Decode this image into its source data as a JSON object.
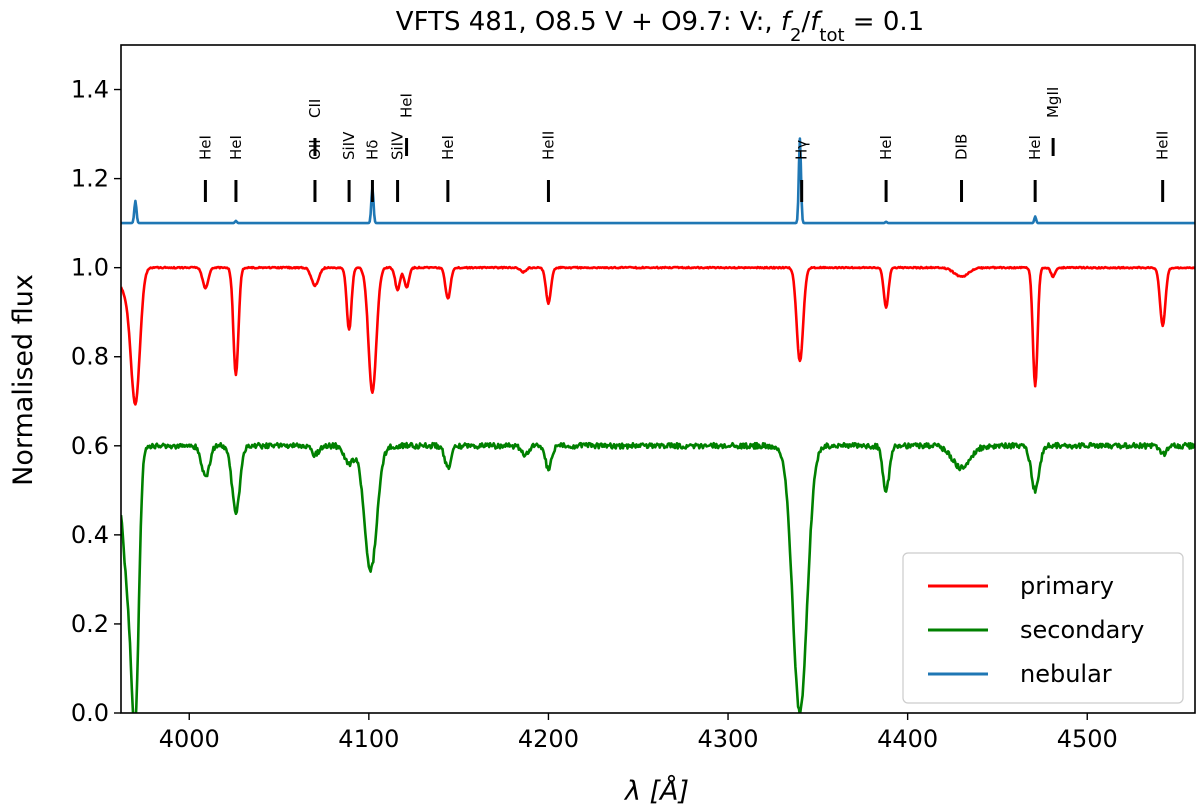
{
  "chart_data": {
    "type": "line",
    "title": {
      "prefix": "VFTS 481, O8.5 V + O9.7: V:, ",
      "f2": "f",
      "f2_sub": "2",
      "slash": "/",
      "ftot": "f",
      "ftot_sub": "tot",
      "suffix": " = 0.1"
    },
    "xlabel": {
      "lambda": "λ",
      "unit": "[Å]"
    },
    "ylabel": "Normalised flux",
    "xlim": [
      3962,
      4560
    ],
    "ylim": [
      0.0,
      1.5
    ],
    "xticks": [
      4000,
      4100,
      4200,
      4300,
      4400,
      4500
    ],
    "xtick_labels": [
      "4000",
      "4100",
      "4200",
      "4300",
      "4400",
      "4500"
    ],
    "yticks": [
      0.0,
      0.2,
      0.4,
      0.6,
      0.8,
      1.0,
      1.2,
      1.4
    ],
    "ytick_labels": [
      "0.0",
      "0.2",
      "0.4",
      "0.6",
      "0.8",
      "1.0",
      "1.2",
      "1.4"
    ],
    "grid": false,
    "legend_position": "lower-right",
    "line_markers": [
      {
        "label": "HeI",
        "x": 4009,
        "level": "low"
      },
      {
        "label": "HeI",
        "x": 4026,
        "level": "low"
      },
      {
        "label": "OII",
        "x": 4070,
        "level": "low"
      },
      {
        "label": "CII",
        "x": 4070,
        "level": "high"
      },
      {
        "label": "SiIV",
        "x": 4089,
        "level": "low"
      },
      {
        "label": "Hδ",
        "x": 4102,
        "level": "low"
      },
      {
        "label": "SiIV",
        "x": 4116,
        "level": "low"
      },
      {
        "label": "HeI",
        "x": 4121,
        "level": "high"
      },
      {
        "label": "HeI",
        "x": 4144,
        "level": "low"
      },
      {
        "label": "HeII",
        "x": 4200,
        "level": "low"
      },
      {
        "label": "Hγ",
        "x": 4341,
        "level": "low"
      },
      {
        "label": "HeI",
        "x": 4388,
        "level": "low"
      },
      {
        "label": "DIB",
        "x": 4430,
        "level": "low"
      },
      {
        "label": "HeI",
        "x": 4471,
        "level": "low"
      },
      {
        "label": "MgII",
        "x": 4481,
        "level": "high"
      },
      {
        "label": "HeII",
        "x": 4542,
        "level": "low"
      }
    ],
    "series": [
      {
        "name": "primary",
        "color": "#ff0000",
        "continuum": 1.0,
        "absorption_lines": [
          {
            "center": 3964,
            "depth": 0.05,
            "width": 3
          },
          {
            "center": 3970,
            "depth": 0.3,
            "width": 2.5
          },
          {
            "center": 4009,
            "depth": 0.045,
            "width": 1.6
          },
          {
            "center": 4026,
            "depth": 0.24,
            "width": 1.4
          },
          {
            "center": 4070,
            "depth": 0.04,
            "width": 2.0
          },
          {
            "center": 4089,
            "depth": 0.14,
            "width": 1.3
          },
          {
            "center": 4102,
            "depth": 0.28,
            "width": 2.2
          },
          {
            "center": 4116,
            "depth": 0.05,
            "width": 1.3
          },
          {
            "center": 4121,
            "depth": 0.045,
            "width": 1.3
          },
          {
            "center": 4144,
            "depth": 0.07,
            "width": 1.4
          },
          {
            "center": 4200,
            "depth": 0.08,
            "width": 1.4
          },
          {
            "center": 4186,
            "depth": 0.01,
            "width": 1.5
          },
          {
            "center": 4340,
            "depth": 0.21,
            "width": 1.8
          },
          {
            "center": 4388,
            "depth": 0.09,
            "width": 1.3
          },
          {
            "center": 4430,
            "depth": 0.02,
            "width": 4.0
          },
          {
            "center": 4471,
            "depth": 0.265,
            "width": 1.3
          },
          {
            "center": 4481,
            "depth": 0.02,
            "width": 1.2
          },
          {
            "center": 4542,
            "depth": 0.13,
            "width": 1.5
          }
        ]
      },
      {
        "name": "secondary",
        "color": "#008000",
        "continuum": 0.6,
        "absorption_lines": [
          {
            "center": 3962,
            "depth": 0.08,
            "width": 4
          },
          {
            "center": 3966,
            "depth": 0.25,
            "width": 2.5
          },
          {
            "center": 3970,
            "depth": 0.55,
            "width": 2.0
          },
          {
            "center": 4009,
            "depth": 0.07,
            "width": 2.2
          },
          {
            "center": 4026,
            "depth": 0.15,
            "width": 2.2
          },
          {
            "center": 4070,
            "depth": 0.02,
            "width": 2.0
          },
          {
            "center": 4089,
            "depth": 0.04,
            "width": 2.5
          },
          {
            "center": 4101,
            "depth": 0.28,
            "width": 3.5
          },
          {
            "center": 4144,
            "depth": 0.05,
            "width": 1.8
          },
          {
            "center": 4187,
            "depth": 0.02,
            "width": 2.0
          },
          {
            "center": 4200,
            "depth": 0.05,
            "width": 1.8
          },
          {
            "center": 4340,
            "depth": 0.6,
            "width": 4.0
          },
          {
            "center": 4388,
            "depth": 0.1,
            "width": 1.8
          },
          {
            "center": 4430,
            "depth": 0.05,
            "width": 5.0
          },
          {
            "center": 4471,
            "depth": 0.1,
            "width": 2.2
          },
          {
            "center": 4542,
            "depth": 0.02,
            "width": 1.8
          }
        ]
      },
      {
        "name": "nebular",
        "color": "#1f77b4",
        "continuum": 1.1,
        "emission_lines": [
          {
            "center": 3970,
            "height": 0.05,
            "width": 0.6
          },
          {
            "center": 4026,
            "height": 0.005,
            "width": 0.5
          },
          {
            "center": 4102,
            "height": 0.08,
            "width": 0.6
          },
          {
            "center": 4340,
            "height": 0.19,
            "width": 0.6
          },
          {
            "center": 4388,
            "height": 0.003,
            "width": 0.5
          },
          {
            "center": 4471,
            "height": 0.015,
            "width": 0.5
          }
        ]
      }
    ]
  }
}
